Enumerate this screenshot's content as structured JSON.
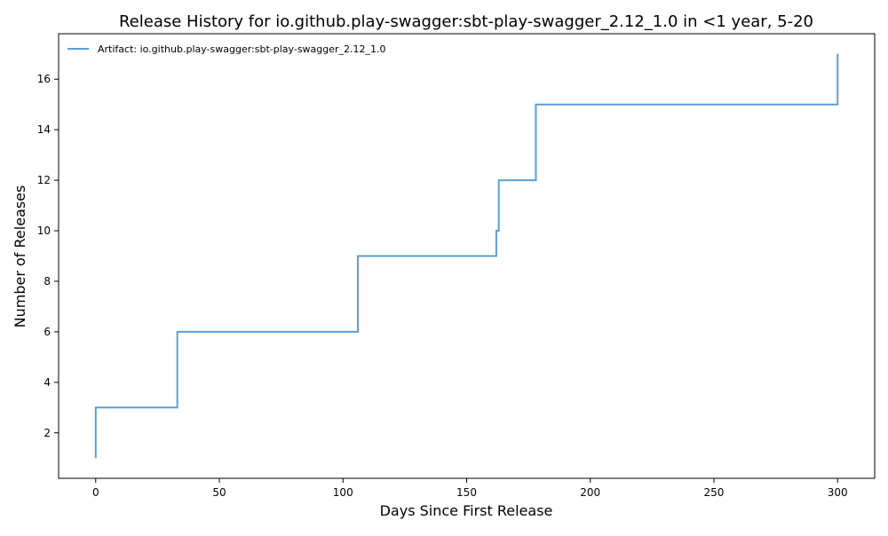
{
  "chart_data": {
    "type": "line",
    "title": "Release History for io.github.play-swagger:sbt-play-swagger_2.12_1.0 in <1 year, 5-20",
    "xlabel": "Days Since First Release",
    "ylabel": "Number of Releases",
    "xlim": [
      -15,
      315
    ],
    "ylim": [
      0.2,
      17.8
    ],
    "x_ticks": [
      0,
      50,
      100,
      150,
      200,
      250,
      300
    ],
    "y_ticks": [
      2,
      4,
      6,
      8,
      10,
      12,
      14,
      16
    ],
    "grid": false,
    "legend_position": "top-left",
    "step": "post",
    "series": [
      {
        "name": "Artifact: io.github.play-swagger:sbt-play-swagger_2.12_1.0",
        "color": "#5b9fd1",
        "points": [
          {
            "x": 0,
            "y": 1
          },
          {
            "x": 0,
            "y": 2
          },
          {
            "x": 0,
            "y": 3
          },
          {
            "x": 33,
            "y": 4
          },
          {
            "x": 33,
            "y": 5
          },
          {
            "x": 33,
            "y": 6
          },
          {
            "x": 106,
            "y": 7
          },
          {
            "x": 106,
            "y": 8
          },
          {
            "x": 106,
            "y": 9
          },
          {
            "x": 162,
            "y": 10
          },
          {
            "x": 163,
            "y": 11
          },
          {
            "x": 163,
            "y": 12
          },
          {
            "x": 178,
            "y": 13
          },
          {
            "x": 178,
            "y": 14
          },
          {
            "x": 178,
            "y": 15
          },
          {
            "x": 300,
            "y": 16
          },
          {
            "x": 300,
            "y": 17
          }
        ]
      }
    ]
  }
}
